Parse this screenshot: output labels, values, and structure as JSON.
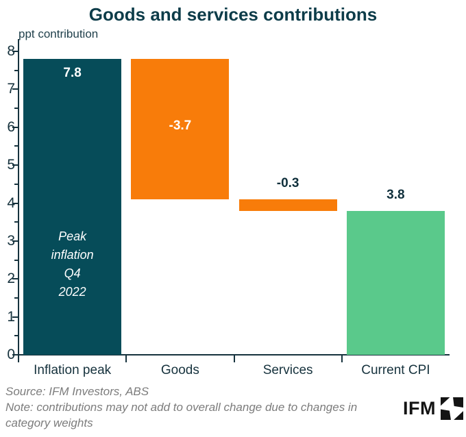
{
  "title": "Goods and services contributions",
  "ylabel": "ppt contribution",
  "colors": {
    "teal": "#064c59",
    "orange": "#f87c0a",
    "green": "#5ac98b",
    "title_text": "#0d3c49",
    "axis": "#16323d",
    "dark_label": "#10303c",
    "footer_gray": "#7c7c7c",
    "inside_label": "#ffffff",
    "logo_black": "#141414"
  },
  "chart_data": {
    "type": "waterfall",
    "title": "Goods and services contributions",
    "ylabel": "ppt contribution",
    "xlabel": "",
    "ylim": [
      0,
      8
    ],
    "ytick_step": 1,
    "yminor_step": 0.5,
    "grid": false,
    "legend": null,
    "categories": [
      "Inflation peak",
      "Goods",
      "Services",
      "Current CPI"
    ],
    "bars": [
      {
        "category": "Inflation peak",
        "start": 0,
        "end": 7.8,
        "change": 7.8,
        "label": "7.8",
        "color_key": "teal",
        "label_placement": "inside-top",
        "annotation_lines": [
          "Peak",
          "inflation",
          "Q4",
          "2022"
        ]
      },
      {
        "category": "Goods",
        "start": 7.8,
        "end": 4.1,
        "change": -3.7,
        "label": "-3.7",
        "color_key": "orange",
        "label_placement": "inside-middle",
        "annotation_lines": null
      },
      {
        "category": "Services",
        "start": 4.1,
        "end": 3.8,
        "change": -0.3,
        "label": "-0.3",
        "color_key": "orange",
        "label_placement": "above",
        "annotation_lines": null
      },
      {
        "category": "Current CPI",
        "start": 0,
        "end": 3.8,
        "change": 3.8,
        "label": "3.8",
        "color_key": "green",
        "label_placement": "above",
        "annotation_lines": null
      }
    ]
  },
  "footer": {
    "source": "Source: IFM Investors, ABS",
    "note": "Note: contributions may not add to overall change due to changes in category weights"
  },
  "logo": {
    "text": "IFM",
    "mark": "ifm-square-star-mark"
  }
}
